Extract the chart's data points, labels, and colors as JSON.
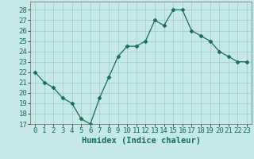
{
  "x": [
    0,
    1,
    2,
    3,
    4,
    5,
    6,
    7,
    8,
    9,
    10,
    11,
    12,
    13,
    14,
    15,
    16,
    17,
    18,
    19,
    20,
    21,
    22,
    23
  ],
  "y": [
    22,
    21,
    20.5,
    19.5,
    19,
    17.5,
    17,
    19.5,
    21.5,
    23.5,
    24.5,
    24.5,
    25,
    27,
    26.5,
    28,
    28,
    26,
    25.5,
    25,
    24,
    23.5,
    23,
    23
  ],
  "line_color": "#1a6b5a",
  "marker": "D",
  "marker_size": 2.5,
  "bg_color": "#c5e8e8",
  "grid_color": "#a0c8c8",
  "xlabel": "Humidex (Indice chaleur)",
  "xlim": [
    -0.5,
    23.5
  ],
  "ylim": [
    17,
    28.8
  ],
  "yticks": [
    17,
    18,
    19,
    20,
    21,
    22,
    23,
    24,
    25,
    26,
    27,
    28
  ],
  "xticks": [
    0,
    1,
    2,
    3,
    4,
    5,
    6,
    7,
    8,
    9,
    10,
    11,
    12,
    13,
    14,
    15,
    16,
    17,
    18,
    19,
    20,
    21,
    22,
    23
  ],
  "xlabel_fontsize": 7.5,
  "tick_fontsize": 6.5
}
